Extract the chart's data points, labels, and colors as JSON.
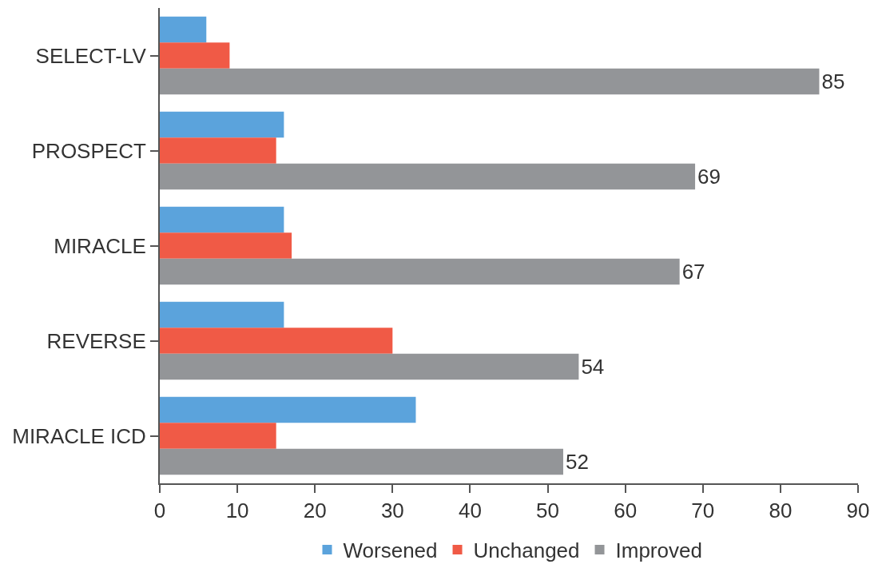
{
  "chart_data": {
    "type": "bar",
    "orientation": "horizontal",
    "categories": [
      "SELECT-LV",
      "PROSPECT",
      "MIRACLE",
      "REVERSE",
      "MIRACLE ICD"
    ],
    "series": [
      {
        "name": "Worsened",
        "color": "#5ba3dc",
        "values": [
          6,
          16,
          16,
          16,
          33
        ]
      },
      {
        "name": "Unchanged",
        "color": "#f05a46",
        "values": [
          9,
          15,
          17,
          30,
          15
        ]
      },
      {
        "name": "Improved",
        "color": "#939598",
        "values": [
          85,
          69,
          67,
          54,
          52
        ],
        "value_labels": [
          "85",
          "69",
          "67",
          "54",
          "52"
        ]
      }
    ],
    "xlim": [
      0,
      90
    ],
    "xticks": [
      0,
      10,
      20,
      30,
      40,
      50,
      60,
      70,
      80,
      90
    ],
    "grid": false,
    "legend": "bottom"
  }
}
